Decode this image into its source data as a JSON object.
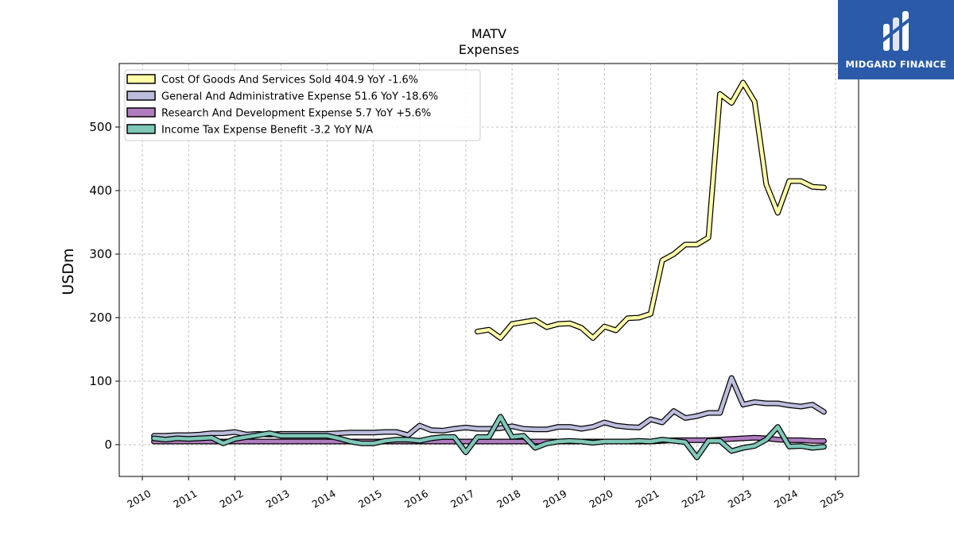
{
  "brand": {
    "name": "MIDGARD FINANCE",
    "color": "#2a5aa8"
  },
  "chart_data": {
    "type": "line",
    "title": "MATV",
    "subtitle": "Expenses",
    "xlabel": "",
    "ylabel": "USDm",
    "xlim": [
      2009.5,
      2025.5
    ],
    "ylim": [
      -50,
      600
    ],
    "grid": true,
    "legend_position": "top-left",
    "x_ticks": [
      2010,
      2011,
      2012,
      2013,
      2014,
      2015,
      2016,
      2017,
      2018,
      2019,
      2020,
      2021,
      2022,
      2023,
      2024,
      2025
    ],
    "y_ticks": [
      0,
      100,
      200,
      300,
      400,
      500
    ],
    "series": [
      {
        "name": "Cost Of Goods And Services Sold",
        "legend_label": "Cost Of Goods And Services Sold  404.9 YoY -1.6%",
        "color": "#ffffaa",
        "x": [
          2017.25,
          2017.5,
          2017.75,
          2018.0,
          2018.25,
          2018.5,
          2018.75,
          2019.0,
          2019.25,
          2019.5,
          2019.75,
          2020.0,
          2020.25,
          2020.5,
          2020.75,
          2021.0,
          2021.25,
          2021.5,
          2021.75,
          2022.0,
          2022.25,
          2022.5,
          2022.75,
          2023.0,
          2023.25,
          2023.5,
          2023.75,
          2024.0,
          2024.25,
          2024.5,
          2024.75
        ],
        "values": [
          178,
          181,
          168,
          190,
          193,
          196,
          185,
          190,
          191,
          184,
          168,
          186,
          180,
          199,
          200,
          206,
          290,
          300,
          315,
          315,
          326,
          552,
          538,
          570,
          540,
          410,
          365,
          415,
          415,
          406,
          404.9
        ]
      },
      {
        "name": "General And Administrative Expense",
        "legend_label": "General And Administrative Expense  51.6 YoY -18.6%",
        "color": "#bcbddc",
        "x": [
          2010.25,
          2010.5,
          2010.75,
          2011.0,
          2011.25,
          2011.5,
          2011.75,
          2012.0,
          2012.25,
          2012.5,
          2012.75,
          2013.0,
          2013.25,
          2013.5,
          2013.75,
          2014.0,
          2014.25,
          2014.5,
          2014.75,
          2015.0,
          2015.25,
          2015.5,
          2015.75,
          2016.0,
          2016.25,
          2016.5,
          2016.75,
          2017.0,
          2017.25,
          2017.5,
          2017.75,
          2018.0,
          2018.25,
          2018.5,
          2018.75,
          2019.0,
          2019.25,
          2019.5,
          2019.75,
          2020.0,
          2020.25,
          2020.5,
          2020.75,
          2021.0,
          2021.25,
          2021.5,
          2021.75,
          2022.0,
          2022.25,
          2022.5,
          2022.75,
          2023.0,
          2023.25,
          2023.5,
          2023.75,
          2024.0,
          2024.25,
          2024.5,
          2024.75
        ],
        "values": [
          14,
          14,
          15,
          15,
          16,
          18,
          18,
          20,
          16,
          17,
          16,
          17,
          17,
          17,
          17,
          17,
          18,
          19,
          19,
          19,
          20,
          20,
          15,
          30,
          23,
          22,
          25,
          27,
          25,
          25,
          26,
          29,
          25,
          24,
          24,
          28,
          28,
          25,
          28,
          35,
          30,
          28,
          27,
          40,
          35,
          53,
          42,
          45,
          50,
          50,
          105,
          63,
          67,
          65,
          65,
          62,
          60,
          63,
          51.6
        ]
      },
      {
        "name": "Research And Development Expense",
        "legend_label": "Research And Development Expense  5.7 YoY +5.6%",
        "color": "#b07cc0",
        "x": [
          2010.25,
          2010.5,
          2010.75,
          2011.0,
          2011.25,
          2011.5,
          2011.75,
          2012.0,
          2012.25,
          2012.5,
          2012.75,
          2013.0,
          2013.25,
          2013.5,
          2013.75,
          2014.0,
          2014.25,
          2014.5,
          2014.75,
          2015.0,
          2015.25,
          2015.5,
          2015.75,
          2016.0,
          2016.25,
          2016.5,
          2016.75,
          2017.0,
          2017.25,
          2017.5,
          2017.75,
          2018.0,
          2018.25,
          2018.5,
          2018.75,
          2019.0,
          2019.25,
          2019.5,
          2019.75,
          2020.0,
          2020.25,
          2020.5,
          2020.75,
          2021.0,
          2021.25,
          2021.5,
          2021.75,
          2022.0,
          2022.25,
          2022.5,
          2022.75,
          2023.0,
          2023.25,
          2023.5,
          2023.75,
          2024.0,
          2024.25,
          2024.5,
          2024.75
        ],
        "values": [
          5,
          5,
          5,
          5,
          5,
          5,
          5,
          5,
          5,
          5,
          5,
          5,
          5,
          5,
          5,
          5,
          5,
          5,
          5,
          5,
          5,
          5,
          5,
          5,
          5,
          5,
          5,
          5,
          5,
          5,
          5,
          5,
          5,
          5,
          5,
          5,
          5,
          5,
          5,
          5,
          5,
          5,
          5,
          5,
          6,
          7,
          7,
          7,
          7,
          8,
          9,
          10,
          11,
          10,
          8,
          7,
          7,
          6,
          5.7
        ]
      },
      {
        "name": "Income Tax Expense Benefit",
        "legend_label": "Income Tax Expense Benefit  -3.2 YoY N/A",
        "color": "#7fc7b8",
        "x": [
          2010.25,
          2010.5,
          2010.75,
          2011.0,
          2011.25,
          2011.5,
          2011.75,
          2012.0,
          2012.25,
          2012.5,
          2012.75,
          2013.0,
          2013.25,
          2013.5,
          2013.75,
          2014.0,
          2014.25,
          2014.5,
          2014.75,
          2015.0,
          2015.25,
          2015.5,
          2015.75,
          2016.0,
          2016.25,
          2016.5,
          2016.75,
          2017.0,
          2017.25,
          2017.5,
          2017.75,
          2018.0,
          2018.25,
          2018.5,
          2018.75,
          2019.0,
          2019.25,
          2019.5,
          2019.75,
          2020.0,
          2020.25,
          2020.5,
          2020.75,
          2021.0,
          2021.25,
          2021.5,
          2021.75,
          2022.0,
          2022.25,
          2022.5,
          2022.75,
          2023.0,
          2023.25,
          2023.5,
          2023.75,
          2024.0,
          2024.25,
          2024.5,
          2024.75
        ],
        "values": [
          10,
          8,
          10,
          9,
          10,
          11,
          2,
          9,
          12,
          15,
          18,
          14,
          14,
          14,
          14,
          14,
          10,
          5,
          2,
          2,
          6,
          8,
          8,
          6,
          10,
          12,
          12,
          -12,
          12,
          12,
          44,
          12,
          14,
          -5,
          2,
          5,
          6,
          5,
          3,
          5,
          5,
          5,
          6,
          5,
          8,
          6,
          4,
          -20,
          6,
          6,
          -10,
          -5,
          -2,
          8,
          28,
          -3,
          -2,
          -5,
          -3.2
        ]
      }
    ]
  }
}
